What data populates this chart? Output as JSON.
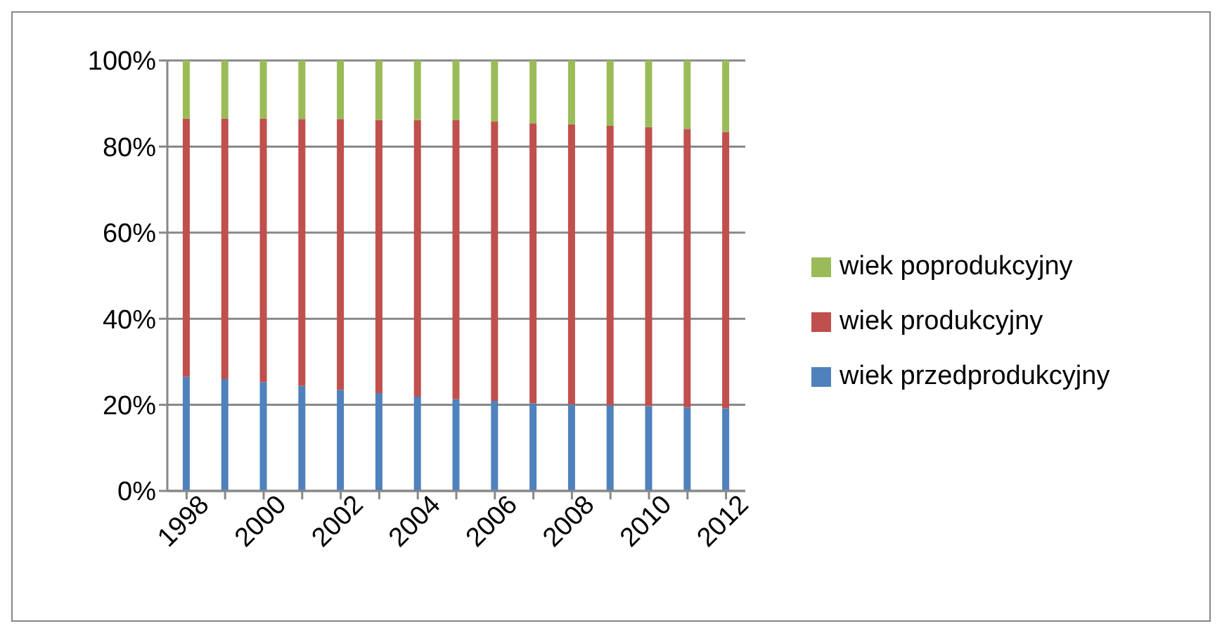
{
  "chart_data": {
    "type": "bar",
    "stacked": true,
    "categories": [
      "1998",
      null,
      "2000",
      null,
      "2002",
      null,
      "2004",
      null,
      "2006",
      null,
      "2008",
      null,
      "2010",
      null,
      "2012"
    ],
    "series": [
      {
        "name": "wiek przedprodukcyjny",
        "color": "#4f81bd",
        "values": [
          26.5,
          26.0,
          25.3,
          24.4,
          23.5,
          22.7,
          21.9,
          21.3,
          20.9,
          20.4,
          20.1,
          19.9,
          19.7,
          19.4,
          19.2
        ]
      },
      {
        "name": "wiek produkcyjny",
        "color": "#c0504d",
        "values": [
          60.0,
          60.5,
          61.2,
          62.0,
          62.9,
          63.5,
          64.3,
          64.8,
          64.9,
          65.0,
          65.1,
          64.9,
          64.8,
          64.7,
          64.2
        ]
      },
      {
        "name": "wiek poprodukcyjny",
        "color": "#9bbb59",
        "values": [
          13.5,
          13.5,
          13.5,
          13.6,
          13.6,
          13.8,
          13.8,
          13.9,
          14.2,
          14.6,
          14.8,
          15.2,
          15.5,
          15.9,
          16.6
        ]
      }
    ],
    "ylim": [
      0,
      100
    ],
    "yticks": [
      {
        "value": 0,
        "label": "0%"
      },
      {
        "value": 20,
        "label": "20%"
      },
      {
        "value": 40,
        "label": "40%"
      },
      {
        "value": 60,
        "label": "60%"
      },
      {
        "value": 80,
        "label": "80%"
      },
      {
        "value": 100,
        "label": "100%"
      }
    ],
    "grid": "y",
    "legend": "right"
  }
}
